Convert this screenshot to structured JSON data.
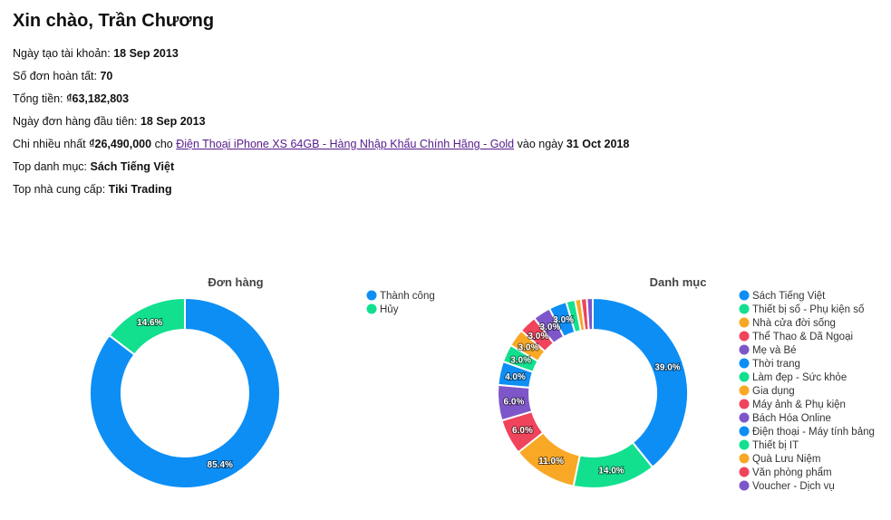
{
  "greeting": "Xin chào, Trần Chương",
  "stats": {
    "account_created_label": "Ngày tạo tài khoản:",
    "account_created_value": "18 Sep 2013",
    "completed_orders_label": "Số đơn hoàn tất:",
    "completed_orders_value": "70",
    "total_label": "Tổng tiền:",
    "total_value": "₫63,182,803",
    "first_order_label": "Ngày đơn hàng đầu tiên:",
    "first_order_value": "18 Sep 2013",
    "max_spend_label": "Chi nhiều nhất",
    "max_spend_value": "₫26,490,000",
    "max_spend_for": "cho",
    "max_spend_product": "Điện Thoại iPhone XS 64GB - Hàng Nhập Khẩu Chính Hãng - Gold",
    "max_spend_on": "vào ngày",
    "max_spend_date": "31 Oct 2018",
    "top_category_label": "Top danh mục:",
    "top_category_value": "Sách Tiếng Việt",
    "top_supplier_label": "Top nhà cung cấp:",
    "top_supplier_value": "Tiki Trading"
  },
  "chart_data": [
    {
      "type": "pie",
      "title": "Đơn hàng",
      "categories": [
        "Thành công",
        "Hủy"
      ],
      "values": [
        85.4,
        14.6
      ],
      "labels": [
        "85.4%",
        "14.6%"
      ],
      "colors": [
        "#0d8ef5",
        "#12e08f"
      ],
      "legend": "right"
    },
    {
      "type": "pie",
      "title": "Danh mục",
      "categories": [
        "Sách Tiếng Việt",
        "Thiết bị số - Phụ kiện số",
        "Nhà cửa đời sống",
        "Thể Thao & Dã Ngoại",
        "Mẹ và Bé",
        "Thời trang",
        "Làm đẹp - Sức khỏe",
        "Gia dụng",
        "Máy ảnh & Phụ kiện",
        "Bách Hóa Online",
        "Điện thoại - Máy tính bảng",
        "Thiết bị IT",
        "Quà Lưu Niệm",
        "Văn phòng phẩm",
        "Voucher - Dịch vụ"
      ],
      "values": [
        39.0,
        14.0,
        11.0,
        6.0,
        6.0,
        4.0,
        3.0,
        3.0,
        3.0,
        3.0,
        3.0,
        1.5,
        1.0,
        1.0,
        1.0
      ],
      "labels": [
        "39.0%",
        "14.0%",
        "11.0%",
        "6.0%",
        "6.0%",
        "4.0%",
        "3.0%",
        "3.0%",
        "3.0%",
        "3.0%",
        "3.0%",
        "",
        "",
        "",
        ""
      ],
      "colors": [
        "#0d8ef5",
        "#12e08f",
        "#f9a825",
        "#f0435c",
        "#7d56c9",
        "#0d8ef5",
        "#12e08f",
        "#f9a825",
        "#f0435c",
        "#7d56c9",
        "#0d8ef5",
        "#12e08f",
        "#f9a825",
        "#f0435c",
        "#7d56c9"
      ],
      "legend": "right"
    }
  ]
}
